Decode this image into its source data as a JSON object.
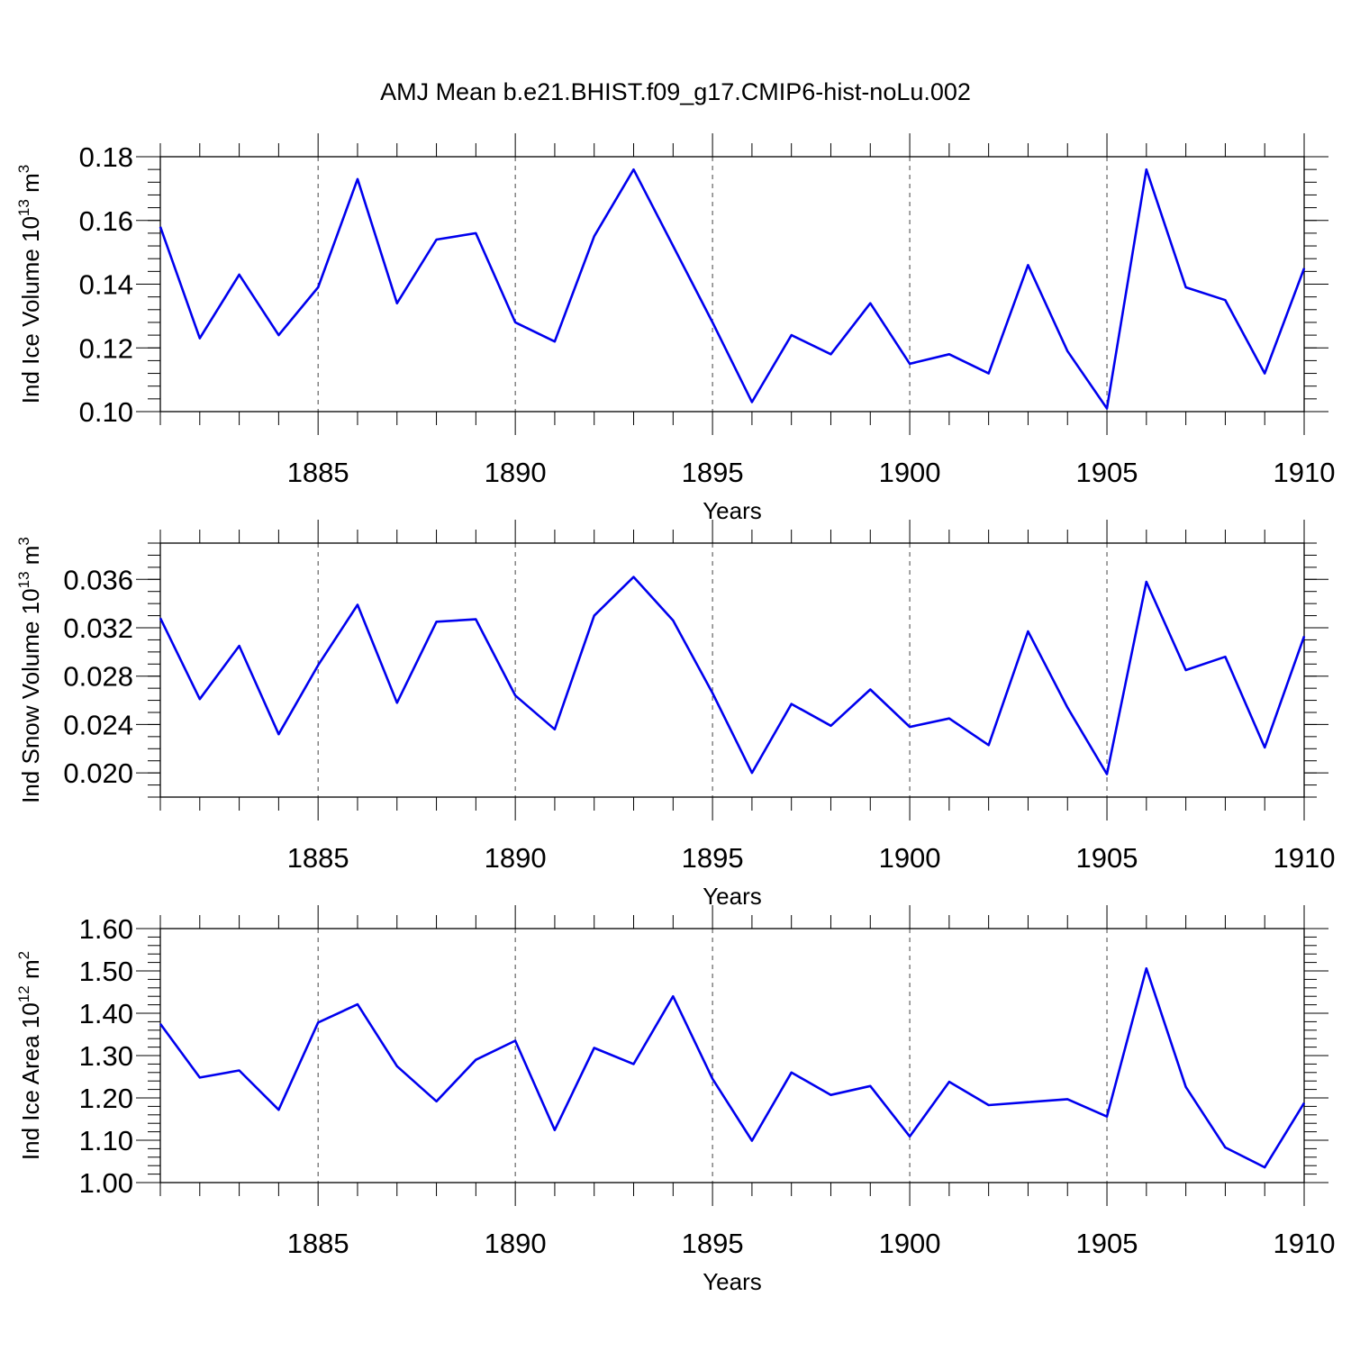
{
  "figure": {
    "title": "AMJ Mean b.e21.BHIST.f09_g17.CMIP6-hist-noLu.002",
    "line_color": "#0000ee"
  },
  "chart_data": [
    {
      "type": "line",
      "title": "AMJ Mean b.e21.BHIST.f09_g17.CMIP6-hist-noLu.002",
      "xlabel": "Years",
      "ylabel": "Ind Ice Volume 10",
      "ylabel_exp": "13",
      "ylabel_unit": " m",
      "ylabel_unit_exp": "3",
      "xlim": [
        1881,
        1910
      ],
      "ylim": [
        0.1,
        0.18
      ],
      "x_ticks": [
        1885,
        1890,
        1895,
        1900,
        1905,
        1910
      ],
      "y_ticks": [
        "0.10",
        "0.12",
        "0.14",
        "0.16",
        "0.18"
      ],
      "grid": "vertical dashed at labeled years",
      "x": [
        1881,
        1882,
        1883,
        1884,
        1885,
        1886,
        1887,
        1888,
        1889,
        1890,
        1891,
        1892,
        1893,
        1894,
        1895,
        1896,
        1897,
        1898,
        1899,
        1900,
        1901,
        1902,
        1903,
        1904,
        1905,
        1906,
        1907,
        1908,
        1909,
        1910
      ],
      "series": [
        {
          "values": [
            0.158,
            0.123,
            0.143,
            0.124,
            0.139,
            0.173,
            0.134,
            0.154,
            0.156,
            0.128,
            0.122,
            0.155,
            0.176,
            0.152,
            0.128,
            0.103,
            0.124,
            0.118,
            0.134,
            0.115,
            0.118,
            0.112,
            0.146,
            0.119,
            0.101,
            0.176,
            0.139,
            0.135,
            0.112,
            0.145
          ]
        }
      ]
    },
    {
      "type": "line",
      "xlabel": "Years",
      "ylabel": "Ind Snow Volume 10",
      "ylabel_exp": "13",
      "ylabel_unit": " m",
      "ylabel_unit_exp": "3",
      "xlim": [
        1881,
        1910
      ],
      "ylim": [
        0.018,
        0.039
      ],
      "x_ticks": [
        1885,
        1890,
        1895,
        1900,
        1905,
        1910
      ],
      "y_ticks": [
        "0.020",
        "0.024",
        "0.028",
        "0.032",
        "0.036"
      ],
      "grid": "vertical dashed at labeled years",
      "x": [
        1881,
        1882,
        1883,
        1884,
        1885,
        1886,
        1887,
        1888,
        1889,
        1890,
        1891,
        1892,
        1893,
        1894,
        1895,
        1896,
        1897,
        1898,
        1899,
        1900,
        1901,
        1902,
        1903,
        1904,
        1905,
        1906,
        1907,
        1908,
        1909,
        1910
      ],
      "series": [
        {
          "values": [
            0.0328,
            0.0261,
            0.0305,
            0.0232,
            0.0289,
            0.0339,
            0.0258,
            0.0325,
            0.0327,
            0.0264,
            0.0236,
            0.033,
            0.0362,
            0.0326,
            0.0266,
            0.02,
            0.0257,
            0.0239,
            0.0269,
            0.0238,
            0.0245,
            0.0223,
            0.0317,
            0.0254,
            0.0199,
            0.0358,
            0.0285,
            0.0296,
            0.0221,
            0.0313
          ]
        }
      ]
    },
    {
      "type": "line",
      "xlabel": "Years",
      "ylabel": "Ind Ice Area 10",
      "ylabel_exp": "12",
      "ylabel_unit": " m",
      "ylabel_unit_exp": "2",
      "xlim": [
        1881,
        1910
      ],
      "ylim": [
        1.0,
        1.6
      ],
      "x_ticks": [
        1885,
        1890,
        1895,
        1900,
        1905,
        1910
      ],
      "y_ticks": [
        "1.00",
        "1.10",
        "1.20",
        "1.30",
        "1.40",
        "1.50",
        "1.60"
      ],
      "grid": "vertical dashed at labeled years",
      "x": [
        1881,
        1882,
        1883,
        1884,
        1885,
        1886,
        1887,
        1888,
        1889,
        1890,
        1891,
        1892,
        1893,
        1894,
        1895,
        1896,
        1897,
        1898,
        1899,
        1900,
        1901,
        1902,
        1903,
        1904,
        1905,
        1906,
        1907,
        1908,
        1909,
        1910
      ],
      "series": [
        {
          "values": [
            1.375,
            1.248,
            1.265,
            1.172,
            1.378,
            1.421,
            1.275,
            1.192,
            1.29,
            1.335,
            1.124,
            1.318,
            1.28,
            1.44,
            1.245,
            1.099,
            1.26,
            1.207,
            1.228,
            1.109,
            1.238,
            1.183,
            1.19,
            1.197,
            1.156,
            1.506,
            1.226,
            1.083,
            1.036,
            1.188
          ]
        }
      ]
    }
  ]
}
